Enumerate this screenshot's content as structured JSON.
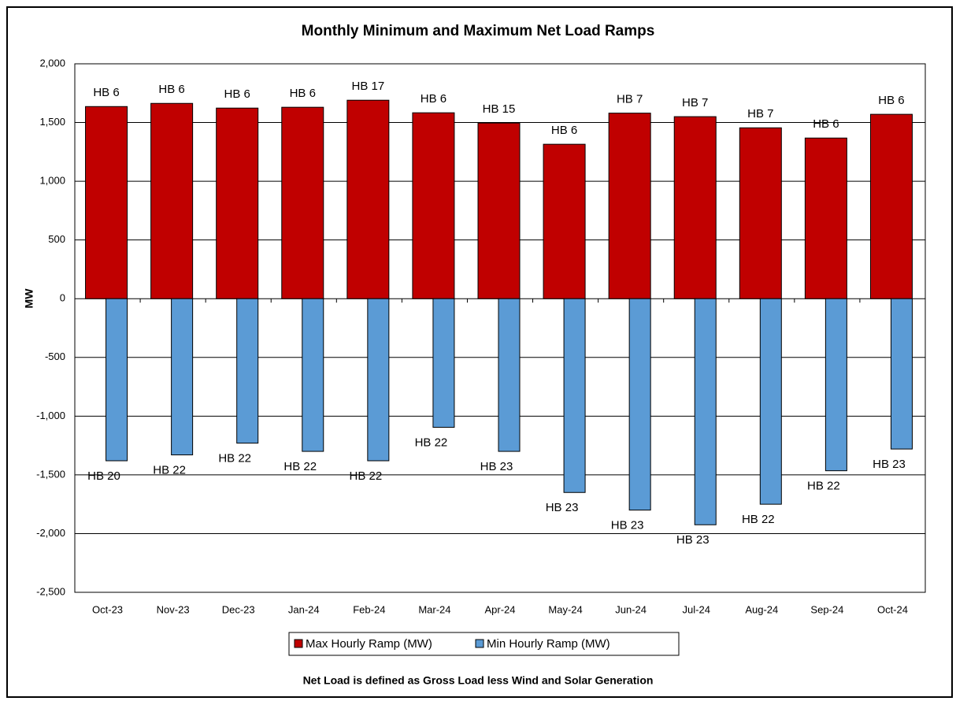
{
  "chart_data": {
    "type": "bar",
    "title": "Monthly Minimum and Maximum Net Load Ramps",
    "y_label": "MW",
    "footnote": "Net Load is defined as Gross Load less Wind and Solar Generation",
    "categories": [
      "Oct-23",
      "Nov-23",
      "Dec-23",
      "Jan-24",
      "Feb-24",
      "Mar-24",
      "Apr-24",
      "May-24",
      "Jun-24",
      "Jul-24",
      "Aug-24",
      "Sep-24",
      "Oct-24"
    ],
    "series": [
      {
        "name": "Max Hourly Ramp (MW)",
        "color": "#c00000",
        "values": [
          1636,
          1663,
          1623,
          1630,
          1690,
          1583,
          1496,
          1315,
          1580,
          1550,
          1455,
          1368,
          1570
        ],
        "labels": [
          "HB 6",
          "HB 6",
          "HB 6",
          "HB 6",
          "HB 17",
          "HB 6",
          "HB 15",
          "HB 6",
          "HB 7",
          "HB 7",
          "HB 7",
          "HB 6",
          "HB 6"
        ]
      },
      {
        "name": "Min Hourly Ramp (MW)",
        "color": "#5b9bd5",
        "values": [
          -1380,
          -1330,
          -1230,
          -1300,
          -1380,
          -1095,
          -1300,
          -1650,
          -1800,
          -1925,
          -1750,
          -1465,
          -1280
        ],
        "labels": [
          "HB 20",
          "HB 22",
          "HB 22",
          "HB 22",
          "HB 22",
          "HB 22",
          "HB 23",
          "HB 23",
          "HB 23",
          "HB 23",
          "HB 22",
          "HB 22",
          "HB 23"
        ]
      }
    ],
    "ylim": [
      -2500,
      2000
    ],
    "yticks": [
      {
        "value": -2500,
        "label": "-2,500"
      },
      {
        "value": -2000,
        "label": "-2,000"
      },
      {
        "value": -1500,
        "label": "-1,500"
      },
      {
        "value": -1000,
        "label": "-1,000"
      },
      -500,
      0,
      500,
      {
        "value": 1000,
        "label": "1,000"
      },
      {
        "value": 1500,
        "label": "1,500"
      },
      {
        "value": 2000,
        "label": "2,000"
      }
    ],
    "grid": true
  }
}
